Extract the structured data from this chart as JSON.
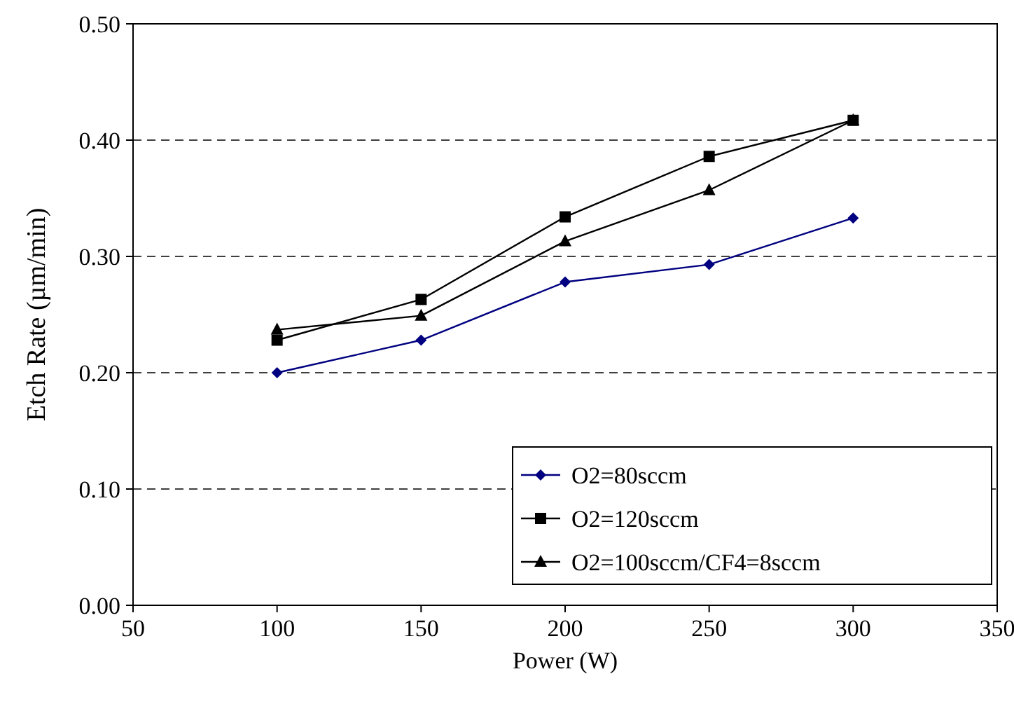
{
  "chart_data": {
    "type": "line",
    "xlabel": "Power (W)",
    "ylabel": "Etch Rate (µm/min)",
    "x": [
      100,
      150,
      200,
      250,
      300
    ],
    "xlim": [
      50,
      350
    ],
    "xticks": [
      50,
      100,
      150,
      200,
      250,
      300,
      350
    ],
    "ylim": [
      0,
      0.5
    ],
    "yticks": [
      {
        "value": 0,
        "label": "0.00"
      },
      {
        "value": 0.1,
        "label": "0.10"
      },
      {
        "value": 0.2,
        "label": "0.20"
      },
      {
        "value": 0.3,
        "label": "0.30"
      },
      {
        "value": 0.4,
        "label": "0.40"
      },
      {
        "value": 0.5,
        "label": "0.50"
      }
    ],
    "grid": "y",
    "legend": "bottom right",
    "series": [
      {
        "name": "O2=80sccm",
        "color": "#000080",
        "marker": "diamond",
        "values": [
          0.2,
          0.228,
          0.278,
          0.293,
          0.333
        ]
      },
      {
        "name": "O2=120sccm",
        "color": "#000000",
        "marker": "square",
        "values": [
          0.228,
          0.263,
          0.334,
          0.386,
          0.417
        ]
      },
      {
        "name": "O2=100sccm/CF4=8sccm",
        "color": "#000000",
        "marker": "triangle",
        "values": [
          0.237,
          0.249,
          0.313,
          0.357,
          0.417
        ]
      }
    ]
  }
}
